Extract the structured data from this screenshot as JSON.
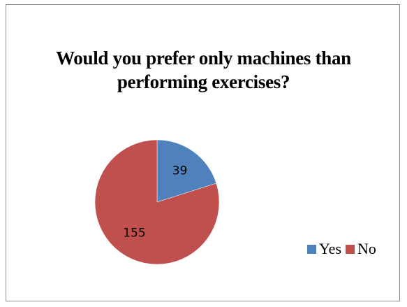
{
  "chart_data": {
    "type": "pie",
    "title_lines": [
      "Would you prefer only machines than",
      "performing exercises?"
    ],
    "categories": [
      "Yes",
      "No"
    ],
    "values": [
      39,
      155
    ],
    "colors": [
      "#4f81bd",
      "#c0504d"
    ],
    "legend_position": "right"
  }
}
